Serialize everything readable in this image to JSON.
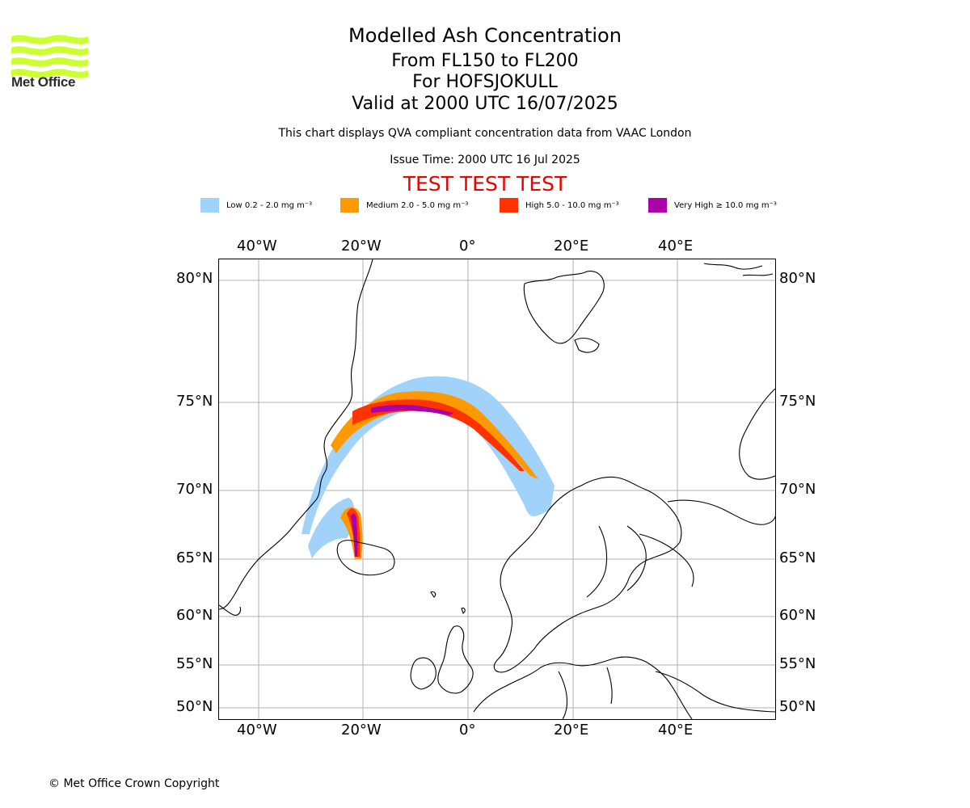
{
  "logo": {
    "text": "Met Office",
    "color": "#ccff33"
  },
  "header": {
    "title": "Modelled Ash Concentration",
    "levels": "From FL150 to FL200",
    "volcano": "For HOFSJOKULL",
    "valid": "Valid at 2000 UTC 16/07/2025",
    "note": "This chart displays QVA compliant concentration data from VAAC London",
    "issue_time": "Issue Time: 2000 UTC 16 Jul 2025",
    "test_banner": "TEST TEST TEST"
  },
  "legend": [
    {
      "label": "Low 0.2 - 2.0 mg m⁻³",
      "color": "#a0d2fa"
    },
    {
      "label": "Medium 2.0 - 5.0 mg m⁻³",
      "color": "#ff9900"
    },
    {
      "label": "High 5.0 - 10.0 mg m⁻³",
      "color": "#ff3300"
    },
    {
      "label": "Very High ≥ 10.0 mg m⁻³",
      "color": "#aa00aa"
    }
  ],
  "map": {
    "lon_ticks": [
      "40°W",
      "20°W",
      "0°",
      "20°E",
      "40°E"
    ],
    "lat_ticks": [
      "80°N",
      "75°N",
      "70°N",
      "65°N",
      "60°N",
      "55°N",
      "50°N"
    ],
    "grid": true
  },
  "footer": {
    "copyright": "© Met Office Crown Copyright"
  }
}
